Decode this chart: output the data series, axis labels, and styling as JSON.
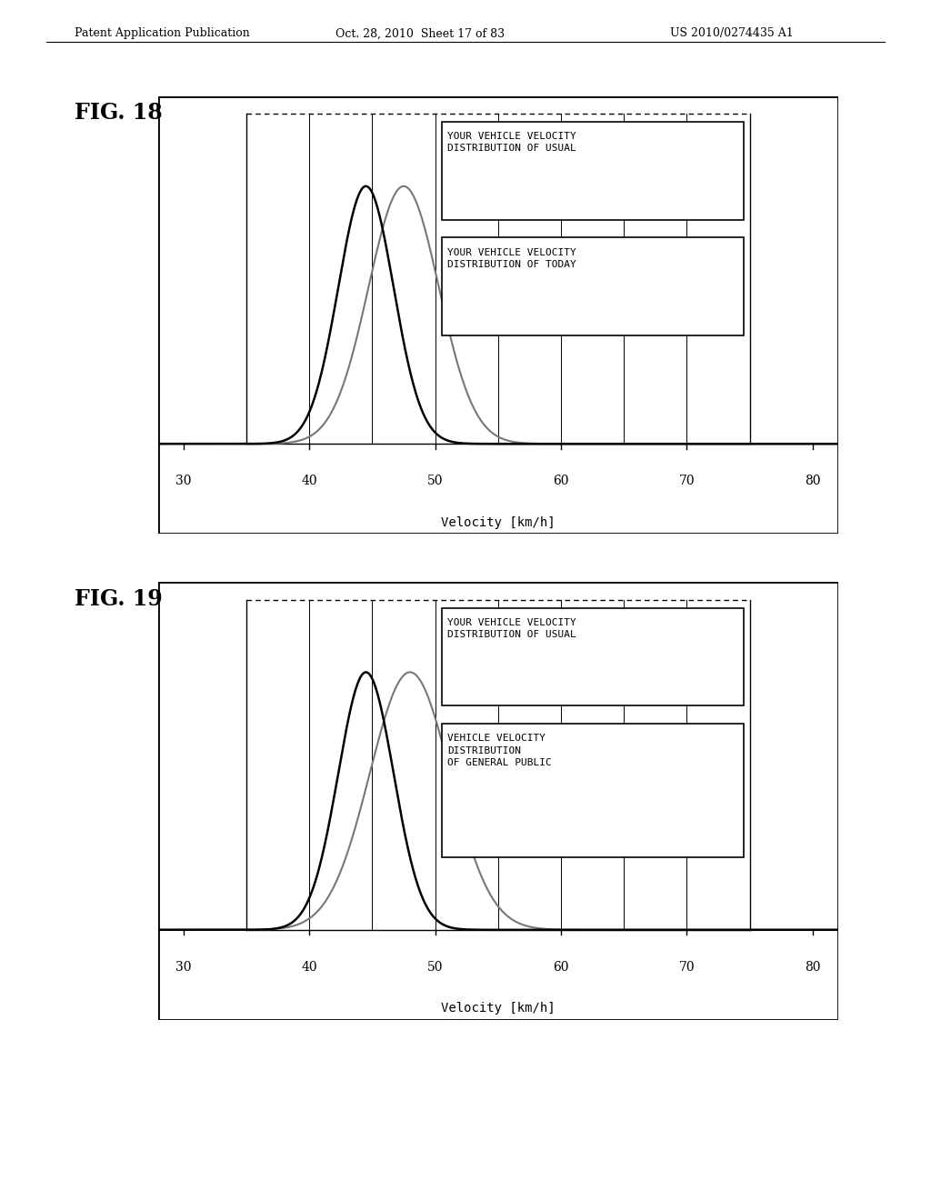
{
  "header_left": "Patent Application Publication",
  "header_center": "Oct. 28, 2010  Sheet 17 of 83",
  "header_right": "US 2010/0274435 A1",
  "fig18_label": "FIG. 18",
  "fig19_label": "FIG. 19",
  "xlabel": "Velocity [km/h]",
  "x_ticks": [
    30,
    40,
    50,
    60,
    70,
    80
  ],
  "x_min": 30,
  "x_max": 80,
  "fig18": {
    "curve1_mean": 44.5,
    "curve1_std": 2.2,
    "curve1_color": "#000000",
    "curve1_lw": 1.8,
    "curve2_mean": 47.5,
    "curve2_std": 2.8,
    "curve2_color": "#777777",
    "curve2_lw": 1.5,
    "label1": "YOUR VEHICLE VELOCITY\nDISTRIBUTION OF USUAL",
    "label2": "YOUR VEHICLE VELOCITY\nDISTRIBUTION OF TODAY"
  },
  "fig19": {
    "curve1_mean": 44.5,
    "curve1_std": 2.2,
    "curve1_color": "#000000",
    "curve1_lw": 1.8,
    "curve2_mean": 48.0,
    "curve2_std": 3.2,
    "curve2_color": "#777777",
    "curve2_lw": 1.5,
    "label1": "YOUR VEHICLE VELOCITY\nDISTRIBUTION OF USUAL",
    "label2": "VEHICLE VELOCITY\nDISTRIBUTION\nOF GENERAL PUBLIC"
  },
  "background_color": "#ffffff",
  "plot_bg_color": "#ffffff",
  "border_color": "#000000"
}
